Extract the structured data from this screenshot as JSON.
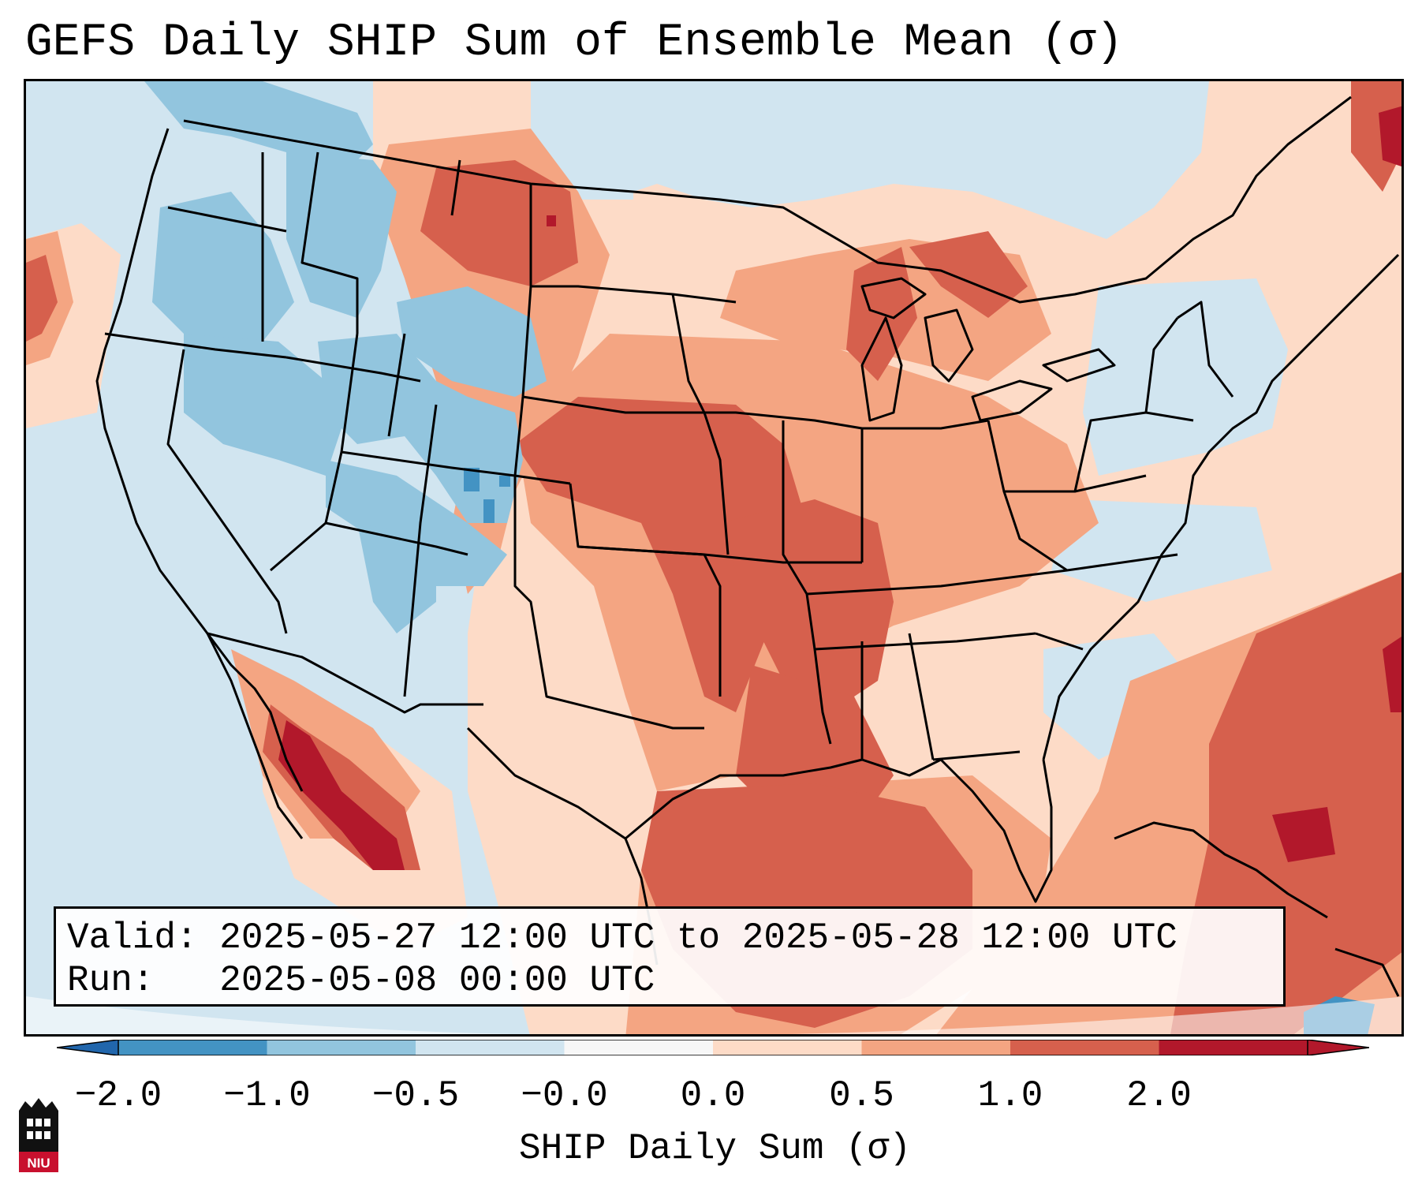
{
  "title": "GEFS Daily SHIP Sum of Ensemble Mean (σ)",
  "info": {
    "valid_line": "Valid: 2025-05-27 12:00 UTC to 2025-05-28 12:00 UTC",
    "run_line": "Run:   2025-05-08 00:00 UTC"
  },
  "colorbar": {
    "label": "SHIP Daily Sum (σ)",
    "ticks": [
      "−2.0",
      "−1.0",
      "−0.5",
      "−0.0",
      "0.0",
      "0.5",
      "1.0",
      "2.0"
    ],
    "colors": [
      "#4393c3",
      "#92c5de",
      "#d1e5f0",
      "#f7f7f7",
      "#fddbc7",
      "#f4a582",
      "#d6604d",
      "#b2182b"
    ],
    "extend_low_color": "#2166ac",
    "extend_high_color": "#b2182b"
  },
  "map": {
    "background_color": "#d1e5f0",
    "logo_text": "NIU"
  }
}
